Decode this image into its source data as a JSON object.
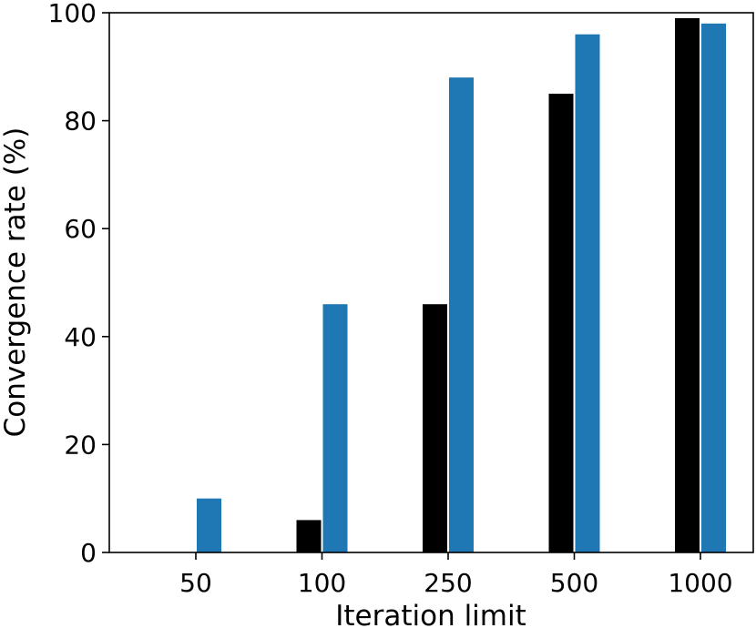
{
  "chart_data": {
    "type": "bar",
    "categories": [
      "50",
      "100",
      "250",
      "500",
      "1000"
    ],
    "series": [
      {
        "color": "#000000",
        "values": [
          0,
          6,
          46,
          85,
          99
        ]
      },
      {
        "color": "#1f77b4",
        "values": [
          10,
          46,
          88,
          96,
          98
        ]
      }
    ],
    "xlabel": "Iteration limit",
    "ylabel": "Convergence rate (%)",
    "ylim": [
      0,
      100
    ],
    "yticks": [
      0,
      20,
      40,
      60,
      80,
      100
    ],
    "grid": false,
    "legend": "none"
  }
}
